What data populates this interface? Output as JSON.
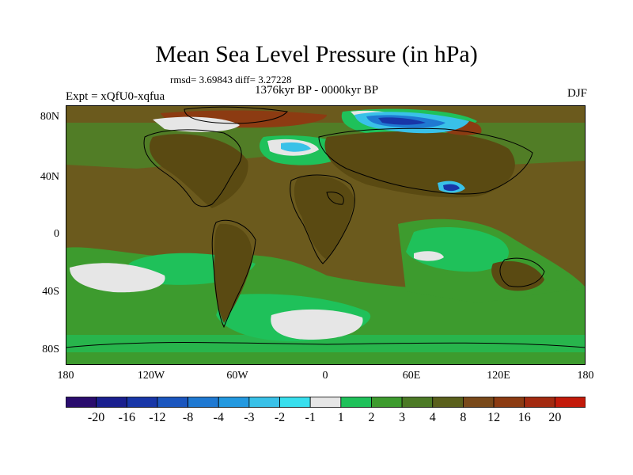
{
  "title": "Mean Sea Level Pressure (in hPa)",
  "stats": "rmsd= 3.69843 diff= 3.27228",
  "period": "1376kyr BP - 0000kyr BP",
  "experiment": "Expt = xQfU0-xqfua",
  "season": "DJF",
  "lat_ticks": [
    "80N",
    "40N",
    "0",
    "40S",
    "80S"
  ],
  "lon_ticks": [
    "180",
    "120W",
    "60W",
    "0",
    "60E",
    "120E",
    "180"
  ],
  "colorbar": {
    "colors": [
      "#2a0c6e",
      "#1a1f8f",
      "#1836a8",
      "#1b56bf",
      "#1f79d2",
      "#2399e0",
      "#39c1e8",
      "#38dfee",
      "#e6e6e6",
      "#1fc15a",
      "#3d9b2e",
      "#4c7a26",
      "#5a601c",
      "#79491a",
      "#8c3b12",
      "#a32a10",
      "#c31a0a"
    ],
    "labels": [
      "-20",
      "-16",
      "-12",
      "-8",
      "-4",
      "-3",
      "-2",
      "-1",
      "1",
      "2",
      "3",
      "4",
      "8",
      "12",
      "16",
      "20"
    ]
  }
}
